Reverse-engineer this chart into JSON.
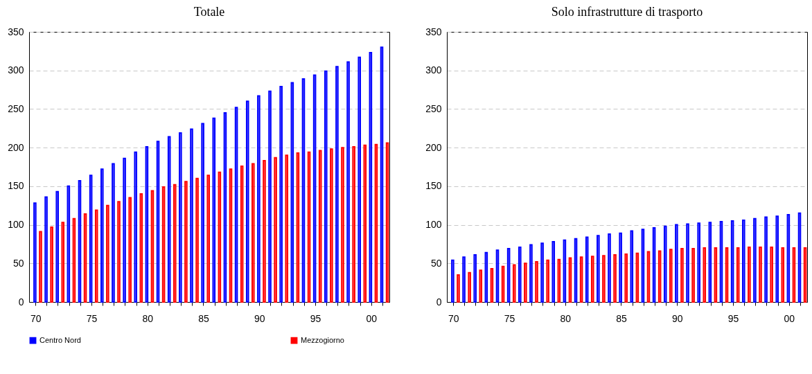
{
  "chart_data": [
    {
      "type": "bar",
      "title": "Totale",
      "categories": [
        "70",
        null,
        null,
        null,
        null,
        "75",
        null,
        null,
        null,
        null,
        "80",
        null,
        null,
        null,
        null,
        "85",
        null,
        null,
        null,
        null,
        "90",
        null,
        null,
        null,
        null,
        "95",
        null,
        null,
        null,
        null,
        "00",
        null
      ],
      "series": [
        {
          "name": "Centro Nord",
          "color": "#0000ff",
          "values": [
            128,
            136,
            143,
            150,
            157,
            164,
            172,
            179,
            186,
            194,
            201,
            208,
            214,
            219,
            224,
            231,
            238,
            245,
            252,
            260,
            267,
            273,
            279,
            284,
            289,
            294,
            299,
            305,
            311,
            317,
            323,
            330
          ]
        },
        {
          "name": "Mezzogiorno",
          "color": "#ff0000",
          "values": [
            91,
            97,
            103,
            108,
            114,
            119,
            125,
            130,
            135,
            140,
            144,
            149,
            152,
            156,
            160,
            164,
            168,
            172,
            176,
            179,
            183,
            187,
            190,
            193,
            194,
            196,
            198,
            200,
            201,
            203,
            204,
            206
          ]
        }
      ],
      "ylim": [
        0,
        350
      ],
      "yticks": [
        0,
        50,
        100,
        150,
        200,
        250,
        300,
        350
      ],
      "grid": "y",
      "legend": "bottom"
    },
    {
      "type": "bar",
      "title": "Solo infrastrutture di trasporto",
      "categories": [
        "70",
        null,
        null,
        null,
        null,
        "75",
        null,
        null,
        null,
        null,
        "80",
        null,
        null,
        null,
        null,
        "85",
        null,
        null,
        null,
        null,
        "90",
        null,
        null,
        null,
        null,
        "95",
        null,
        null,
        null,
        null,
        "00",
        null
      ],
      "series": [
        {
          "name": "Centro Nord",
          "color": "#0000ff",
          "values": [
            54,
            58,
            61,
            64,
            67,
            69,
            71,
            74,
            76,
            78,
            80,
            82,
            84,
            86,
            88,
            89,
            92,
            94,
            96,
            98,
            100,
            101,
            102,
            103,
            104,
            105,
            106,
            108,
            110,
            111,
            113,
            115
          ]
        },
        {
          "name": "Mezzogiorno",
          "color": "#ff0000",
          "values": [
            35,
            38,
            41,
            43,
            46,
            48,
            50,
            52,
            54,
            55,
            57,
            58,
            59,
            60,
            61,
            62,
            63,
            65,
            66,
            68,
            69,
            69,
            70,
            70,
            70,
            70,
            71,
            71,
            71,
            70,
            70,
            70
          ]
        }
      ],
      "ylim": [
        0,
        350
      ],
      "yticks": [
        0,
        50,
        100,
        150,
        200,
        250,
        300,
        350
      ],
      "grid": "y",
      "legend": "bottom"
    }
  ]
}
